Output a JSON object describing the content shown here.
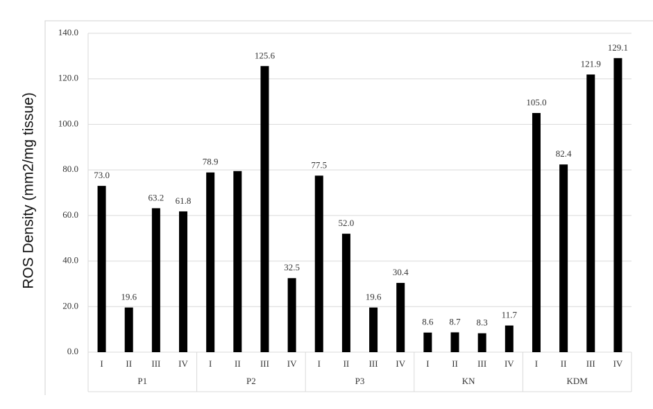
{
  "chart_data": {
    "type": "bar",
    "y_label": "ROS Density (mm2/mg tissue)",
    "groups": [
      "P1",
      "P2",
      "P3",
      "KN",
      "KDM"
    ],
    "categories": [
      "I",
      "II",
      "III",
      "IV",
      "I",
      "II",
      "III",
      "IV",
      "I",
      "II",
      "III",
      "IV",
      "I",
      "II",
      "III",
      "IV",
      "I",
      "II",
      "III",
      "IV"
    ],
    "values": [
      73.0,
      19.6,
      63.2,
      61.8,
      78.9,
      79.5,
      125.6,
      32.5,
      77.5,
      52.0,
      19.6,
      30.4,
      8.6,
      8.7,
      8.3,
      11.7,
      105.0,
      82.4,
      121.9,
      129.1
    ],
    "value_labels": [
      "73.0",
      "19.6",
      "63.2",
      "61.8",
      "78.9",
      null,
      "125.6",
      "32.5",
      "77.5",
      "52.0",
      "19.6",
      "30.4",
      "8.6",
      "8.7",
      "8.3",
      "11.7",
      "105.0",
      "82.4",
      "121.9",
      "129.1"
    ],
    "color": "#000000",
    "ylim": [
      0,
      140
    ],
    "yticks": [
      {
        "value": 0,
        "label": "0.0"
      },
      {
        "value": 20,
        "label": "20.0"
      },
      {
        "value": 40,
        "label": "40.0"
      },
      {
        "value": 60,
        "label": "60.0"
      },
      {
        "value": 80,
        "label": "80.0"
      },
      {
        "value": 100,
        "label": "100.0"
      },
      {
        "value": 120,
        "label": "120.0"
      },
      {
        "value": 140,
        "label": "140.0"
      }
    ],
    "grid": true
  }
}
